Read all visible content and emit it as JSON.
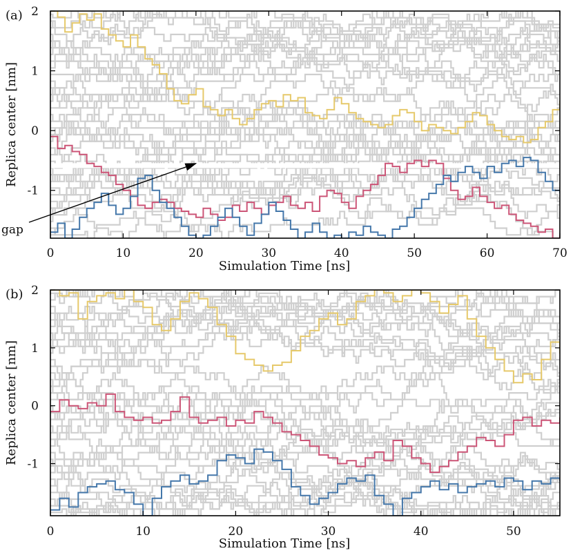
{
  "chart_data": [
    {
      "type": "line",
      "panel_label": "(a)",
      "xlabel": "Simulation Time [ns]",
      "ylabel": "Replica center [nm]",
      "xlim": [
        0,
        70
      ],
      "ylim": [
        -1.8,
        2
      ],
      "xticks": [
        0,
        10,
        20,
        30,
        40,
        50,
        60,
        70
      ],
      "yticks": [
        -1,
        0,
        1,
        2
      ],
      "xtick_labels": [
        "0",
        "10",
        "20",
        "30",
        "40",
        "50",
        "60",
        "70"
      ],
      "ytick_labels": [
        "-1",
        "0",
        "1",
        "2"
      ],
      "background_replicas_color": "#cfcfcf",
      "gap": {
        "y": -0.58
      },
      "annotation": {
        "text": "gap",
        "arrow_to": [
          20,
          -0.55
        ]
      },
      "series": [
        {
          "color": "#e6c96a",
          "x": [
            0,
            1,
            2,
            3,
            4,
            5,
            6,
            7,
            8,
            9,
            10,
            11,
            12,
            13,
            14,
            15,
            16,
            17,
            18,
            19,
            20,
            21,
            22,
            23,
            24,
            25,
            26,
            27,
            28,
            29,
            30,
            31,
            32,
            33,
            34,
            35,
            36,
            37,
            38,
            39,
            40,
            41,
            42,
            43,
            44,
            45,
            46,
            47,
            48,
            49,
            50,
            51,
            52,
            53,
            54,
            55,
            56,
            57,
            58,
            59,
            60,
            61,
            62,
            63,
            64,
            65,
            66,
            67,
            68,
            69,
            70
          ],
          "y": [
            2.0,
            1.9,
            1.65,
            1.8,
            1.95,
            1.85,
            1.95,
            1.7,
            1.6,
            1.5,
            1.4,
            1.6,
            1.4,
            1.2,
            1.1,
            0.95,
            0.7,
            0.5,
            0.45,
            0.6,
            0.7,
            0.4,
            0.35,
            0.25,
            0.35,
            0.2,
            0.1,
            0.2,
            0.35,
            0.45,
            0.5,
            0.4,
            0.6,
            0.5,
            0.55,
            0.3,
            0.25,
            0.2,
            0.35,
            0.55,
            0.45,
            0.3,
            0.2,
            0.15,
            0.1,
            0.05,
            0.1,
            0.25,
            0.35,
            0.3,
            0.15,
            0.0,
            0.1,
            0.05,
            0.0,
            -0.05,
            0.05,
            0.15,
            0.3,
            0.25,
            0.1,
            0.0,
            -0.1,
            -0.15,
            -0.1,
            -0.2,
            -0.15,
            0.05,
            0.15,
            0.35,
            0.5
          ]
        },
        {
          "color": "#cc5577",
          "x": [
            0,
            1,
            2,
            3,
            4,
            5,
            6,
            7,
            8,
            9,
            10,
            11,
            12,
            13,
            14,
            15,
            16,
            17,
            18,
            19,
            20,
            21,
            22,
            23,
            24,
            25,
            26,
            27,
            28,
            29,
            30,
            31,
            32,
            33,
            34,
            35,
            36,
            37,
            38,
            39,
            40,
            41,
            42,
            43,
            44,
            45,
            46,
            47,
            48,
            49,
            50,
            51,
            52,
            53,
            54,
            55,
            56,
            57,
            58,
            59,
            60,
            61,
            62,
            63,
            64,
            65,
            66,
            67,
            68,
            69,
            70
          ],
          "y": [
            -0.1,
            -0.3,
            -0.25,
            -0.35,
            -0.4,
            -0.55,
            -0.6,
            -0.7,
            -0.75,
            -0.9,
            -1.0,
            -1.1,
            -1.25,
            -1.3,
            -1.2,
            -1.15,
            -1.2,
            -1.3,
            -1.35,
            -1.4,
            -1.45,
            -1.3,
            -1.4,
            -1.5,
            -1.45,
            -1.25,
            -1.35,
            -1.2,
            -1.3,
            -1.4,
            -1.25,
            -1.2,
            -1.1,
            -1.25,
            -1.3,
            -1.2,
            -1.35,
            -1.1,
            -1.0,
            -1.05,
            -1.2,
            -1.3,
            -1.1,
            -1.0,
            -0.9,
            -0.75,
            -0.55,
            -0.6,
            -0.7,
            -0.55,
            -0.5,
            -0.6,
            -0.5,
            -0.55,
            -0.8,
            -1.0,
            -1.15,
            -1.1,
            -0.95,
            -1.1,
            -1.2,
            -1.3,
            -1.25,
            -1.4,
            -1.5,
            -1.55,
            -1.6,
            -1.7,
            -1.65,
            -1.8,
            -1.75
          ]
        },
        {
          "color": "#4477aa",
          "x": [
            0,
            1,
            2,
            3,
            4,
            5,
            6,
            7,
            8,
            9,
            10,
            11,
            12,
            13,
            14,
            15,
            16,
            17,
            18,
            19,
            20,
            21,
            22,
            23,
            24,
            25,
            26,
            27,
            28,
            29,
            30,
            31,
            32,
            33,
            34,
            35,
            36,
            37,
            38,
            39,
            40,
            41,
            42,
            43,
            44,
            45,
            46,
            47,
            48,
            49,
            50,
            51,
            52,
            53,
            54,
            55,
            56,
            57,
            58,
            59,
            60,
            61,
            62,
            63,
            64,
            65,
            66,
            67,
            68,
            69,
            70
          ],
          "y": [
            -1.7,
            -1.55,
            -1.8,
            -1.65,
            -1.45,
            -1.3,
            -1.2,
            -1.05,
            -1.25,
            -1.4,
            -1.3,
            -1.1,
            -0.8,
            -0.75,
            -1.0,
            -1.2,
            -1.3,
            -1.45,
            -1.6,
            -1.75,
            -1.8,
            -1.75,
            -1.6,
            -1.45,
            -1.3,
            -1.45,
            -1.6,
            -1.75,
            -1.55,
            -1.4,
            -1.2,
            -1.35,
            -1.5,
            -1.65,
            -1.8,
            -1.7,
            -1.55,
            -1.7,
            -1.8,
            -1.75,
            -1.8,
            -1.7,
            -1.75,
            -1.6,
            -1.7,
            -1.75,
            -1.8,
            -1.65,
            -1.6,
            -1.45,
            -1.3,
            -1.15,
            -1.05,
            -0.9,
            -0.75,
            -0.85,
            -0.7,
            -0.6,
            -0.7,
            -0.8,
            -0.6,
            -0.7,
            -0.55,
            -0.5,
            -0.6,
            -0.45,
            -0.5,
            -0.7,
            -0.85,
            -1.0,
            -1.05
          ]
        }
      ]
    },
    {
      "type": "line",
      "panel_label": "(b)",
      "xlabel": "Simulation Time [ns]",
      "ylabel": "Replica center [nm]",
      "xlim": [
        0,
        55
      ],
      "ylim": [
        -1.9,
        2
      ],
      "xticks": [
        0,
        10,
        20,
        30,
        40,
        50
      ],
      "yticks": [
        -1,
        0,
        1,
        2
      ],
      "xtick_labels": [
        "0",
        "10",
        "20",
        "30",
        "40",
        "50"
      ],
      "ytick_labels": [
        "-1",
        "0",
        "1",
        "2"
      ],
      "background_replicas_color": "#cfcfcf",
      "series": [
        {
          "color": "#e6c96a",
          "x": [
            0,
            1,
            2,
            3,
            4,
            5,
            6,
            7,
            8,
            9,
            10,
            11,
            12,
            13,
            14,
            15,
            16,
            17,
            18,
            19,
            20,
            21,
            22,
            23,
            24,
            25,
            26,
            27,
            28,
            29,
            30,
            31,
            32,
            33,
            34,
            35,
            36,
            37,
            38,
            39,
            40,
            41,
            42,
            43,
            44,
            45,
            46,
            47,
            48,
            49,
            50,
            51,
            52,
            53,
            54,
            55
          ],
          "y": [
            2.0,
            1.9,
            1.95,
            1.5,
            1.8,
            1.9,
            1.95,
            1.85,
            2.0,
            1.8,
            1.7,
            1.4,
            1.3,
            1.5,
            1.8,
            1.95,
            1.85,
            1.7,
            1.4,
            1.2,
            0.9,
            0.8,
            0.7,
            0.6,
            0.7,
            0.75,
            0.95,
            1.2,
            1.3,
            1.5,
            1.6,
            1.4,
            1.5,
            1.8,
            1.9,
            2.0,
            1.95,
            1.8,
            1.9,
            2.0,
            1.95,
            1.8,
            1.6,
            1.75,
            1.9,
            1.5,
            1.2,
            1.0,
            0.8,
            0.6,
            0.4,
            0.55,
            0.45,
            0.8,
            1.1,
            0.9
          ]
        },
        {
          "color": "#cc5577",
          "x": [
            0,
            1,
            2,
            3,
            4,
            5,
            6,
            7,
            8,
            9,
            10,
            11,
            12,
            13,
            14,
            15,
            16,
            17,
            18,
            19,
            20,
            21,
            22,
            23,
            24,
            25,
            26,
            27,
            28,
            29,
            30,
            31,
            32,
            33,
            34,
            35,
            36,
            37,
            38,
            39,
            40,
            41,
            42,
            43,
            44,
            45,
            46,
            47,
            48,
            49,
            50,
            51,
            52,
            53,
            54,
            55
          ],
          "y": [
            -0.1,
            0.1,
            0.0,
            -0.05,
            0.05,
            0.0,
            0.2,
            -0.1,
            -0.2,
            -0.25,
            -0.2,
            -0.3,
            -0.25,
            -0.1,
            0.15,
            -0.2,
            -0.3,
            -0.25,
            -0.2,
            -0.35,
            -0.25,
            -0.3,
            -0.1,
            -0.2,
            -0.3,
            -0.45,
            -0.5,
            -0.6,
            -0.7,
            -0.85,
            -0.9,
            -1.0,
            -0.95,
            -1.05,
            -0.9,
            -0.8,
            -0.95,
            -0.6,
            -0.7,
            -0.9,
            -1.0,
            -1.15,
            -1.05,
            -0.95,
            -0.8,
            -0.7,
            -0.55,
            -0.6,
            -0.7,
            -0.5,
            -0.25,
            -0.2,
            -0.35,
            -0.25,
            -0.3,
            -0.2
          ]
        },
        {
          "color": "#4477aa",
          "x": [
            0,
            1,
            2,
            3,
            4,
            5,
            6,
            7,
            8,
            9,
            10,
            11,
            12,
            13,
            14,
            15,
            16,
            17,
            18,
            19,
            20,
            21,
            22,
            23,
            24,
            25,
            26,
            27,
            28,
            29,
            30,
            31,
            32,
            33,
            34,
            35,
            36,
            37,
            38,
            39,
            40,
            41,
            42,
            43,
            44,
            45,
            46,
            47,
            48,
            49,
            50,
            51,
            52,
            53,
            54,
            55
          ],
          "y": [
            -1.8,
            -1.6,
            -1.75,
            -1.5,
            -1.4,
            -1.35,
            -1.3,
            -1.45,
            -1.5,
            -1.7,
            -1.9,
            -1.6,
            -1.4,
            -1.3,
            -1.2,
            -1.35,
            -1.3,
            -1.2,
            -0.95,
            -0.85,
            -0.9,
            -1.0,
            -0.75,
            -0.8,
            -0.95,
            -1.1,
            -1.4,
            -1.55,
            -1.7,
            -1.6,
            -1.5,
            -1.35,
            -1.25,
            -1.3,
            -1.2,
            -1.55,
            -1.7,
            -1.9,
            -1.6,
            -1.5,
            -1.4,
            -1.3,
            -1.45,
            -1.35,
            -1.5,
            -1.4,
            -1.35,
            -1.3,
            -1.4,
            -1.25,
            -1.3,
            -1.45,
            -1.3,
            -1.35,
            -1.25,
            -1.3
          ]
        }
      ]
    }
  ]
}
